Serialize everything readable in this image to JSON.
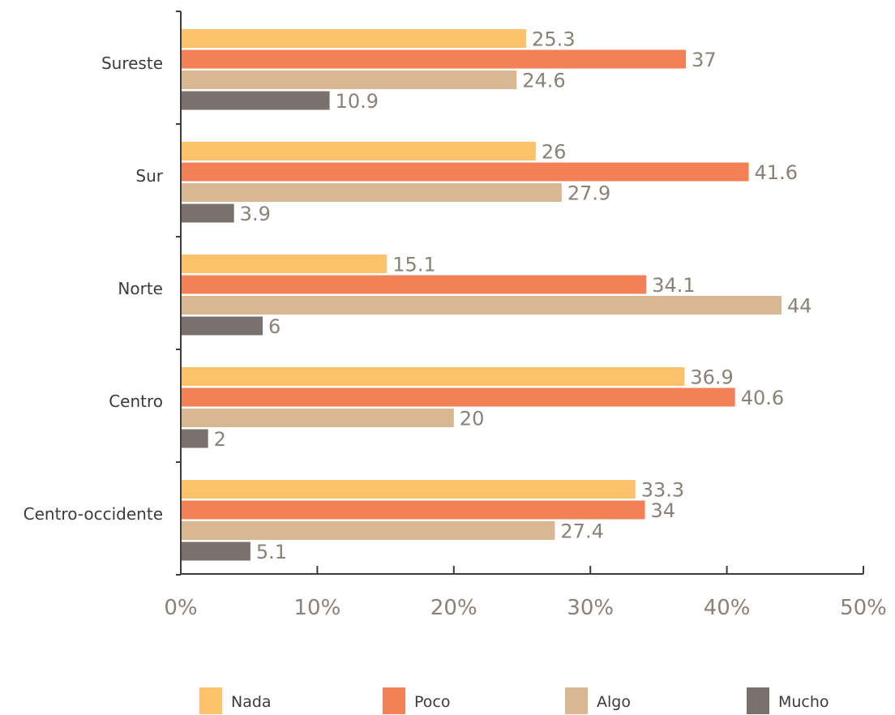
{
  "chart_data": {
    "type": "bar",
    "orientation": "horizontal",
    "categories": [
      "Sureste",
      "Sur",
      "Norte",
      "Centro",
      "Centro-occidente"
    ],
    "series": [
      {
        "name": "Nada",
        "color": "#fcc26b",
        "values": [
          25.3,
          26,
          15.1,
          36.9,
          33.3
        ]
      },
      {
        "name": "Poco",
        "color": "#f28158",
        "values": [
          37,
          41.6,
          34.1,
          40.6,
          34
        ]
      },
      {
        "name": "Algo",
        "color": "#d8b893",
        "values": [
          24.6,
          27.9,
          44,
          20,
          27.4
        ]
      },
      {
        "name": "Mucho",
        "color": "#7a706d",
        "values": [
          10.9,
          3.9,
          6,
          2,
          5.1
        ]
      }
    ],
    "value_labels": [
      [
        "25.3",
        "26",
        "15.1",
        "36.9",
        "33.3"
      ],
      [
        "37",
        "41.6",
        "34.1",
        "40.6",
        "34"
      ],
      [
        "24.6",
        "27.9",
        "44",
        "20",
        "27.4"
      ],
      [
        "10.9",
        "3.9",
        "6",
        "2",
        "5.1"
      ]
    ],
    "xlim": [
      0,
      50
    ],
    "xticks": [
      0,
      10,
      20,
      30,
      40,
      50
    ],
    "xtick_labels": [
      "0%",
      "10%",
      "20%",
      "30%",
      "40%",
      "50%"
    ],
    "grid": false,
    "legend_position": "bottom"
  }
}
